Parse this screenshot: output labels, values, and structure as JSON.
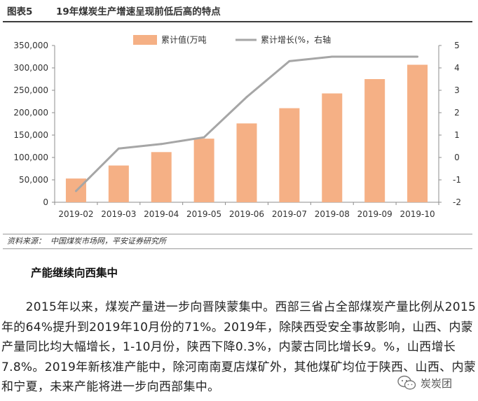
{
  "figure": {
    "label": "图表5",
    "title": "19年煤炭生产增速呈现前低后高的特点",
    "source_label": "资料来源：",
    "source_text": "中国煤炭市场网，平安证券研究所"
  },
  "chart_data": {
    "type": "bar",
    "categories": [
      "2019-02",
      "2019-03",
      "2019-04",
      "2019-05",
      "2019-06",
      "2019-07",
      "2019-08",
      "2019-09",
      "2019-10"
    ],
    "series": [
      {
        "name": "累计值(万吨",
        "type": "bar",
        "axis": "left",
        "color": "#F5B085",
        "values": [
          53000,
          82000,
          112000,
          142000,
          176000,
          210000,
          243000,
          275000,
          307000
        ]
      },
      {
        "name": "累计增长(%，右轴",
        "type": "line",
        "axis": "right",
        "color": "#A6A6A6",
        "values": [
          -1.5,
          0.4,
          0.6,
          0.9,
          2.7,
          4.3,
          4.5,
          4.5,
          4.5
        ]
      }
    ],
    "y_left": {
      "min": 0,
      "max": 350000,
      "ticks": [
        "0",
        "50,000",
        "100,000",
        "150,000",
        "200,000",
        "250,000",
        "300,000",
        "350,000"
      ]
    },
    "y_right": {
      "min": -2,
      "max": 5,
      "ticks": [
        "-2",
        "-1",
        "0",
        "1",
        "2",
        "3",
        "4",
        "5"
      ]
    },
    "legend_position": "top",
    "grid": false
  },
  "article": {
    "heading": "产能继续向西集中",
    "paragraph": "　　2015年以来，煤炭产量进一步向晋陕蒙集中。西部三省占全部煤炭产量比例从2015年的64%提升到2019年10月份的71%。2019年，除陕西受安全事故影响，山西、内蒙产量同比均大幅增长，1-10月份，陕西下降0.3%，内蒙古同比增长9。%，山西增长7.8%。2019年新核准产能中，除河南南夏店煤矿外，其他煤矿均位于陕西、山西、内蒙和宁夏，未来产能将进一步向西部集中。"
  },
  "watermark": {
    "text": "炭炭团",
    "icon": "wechat-icon"
  }
}
